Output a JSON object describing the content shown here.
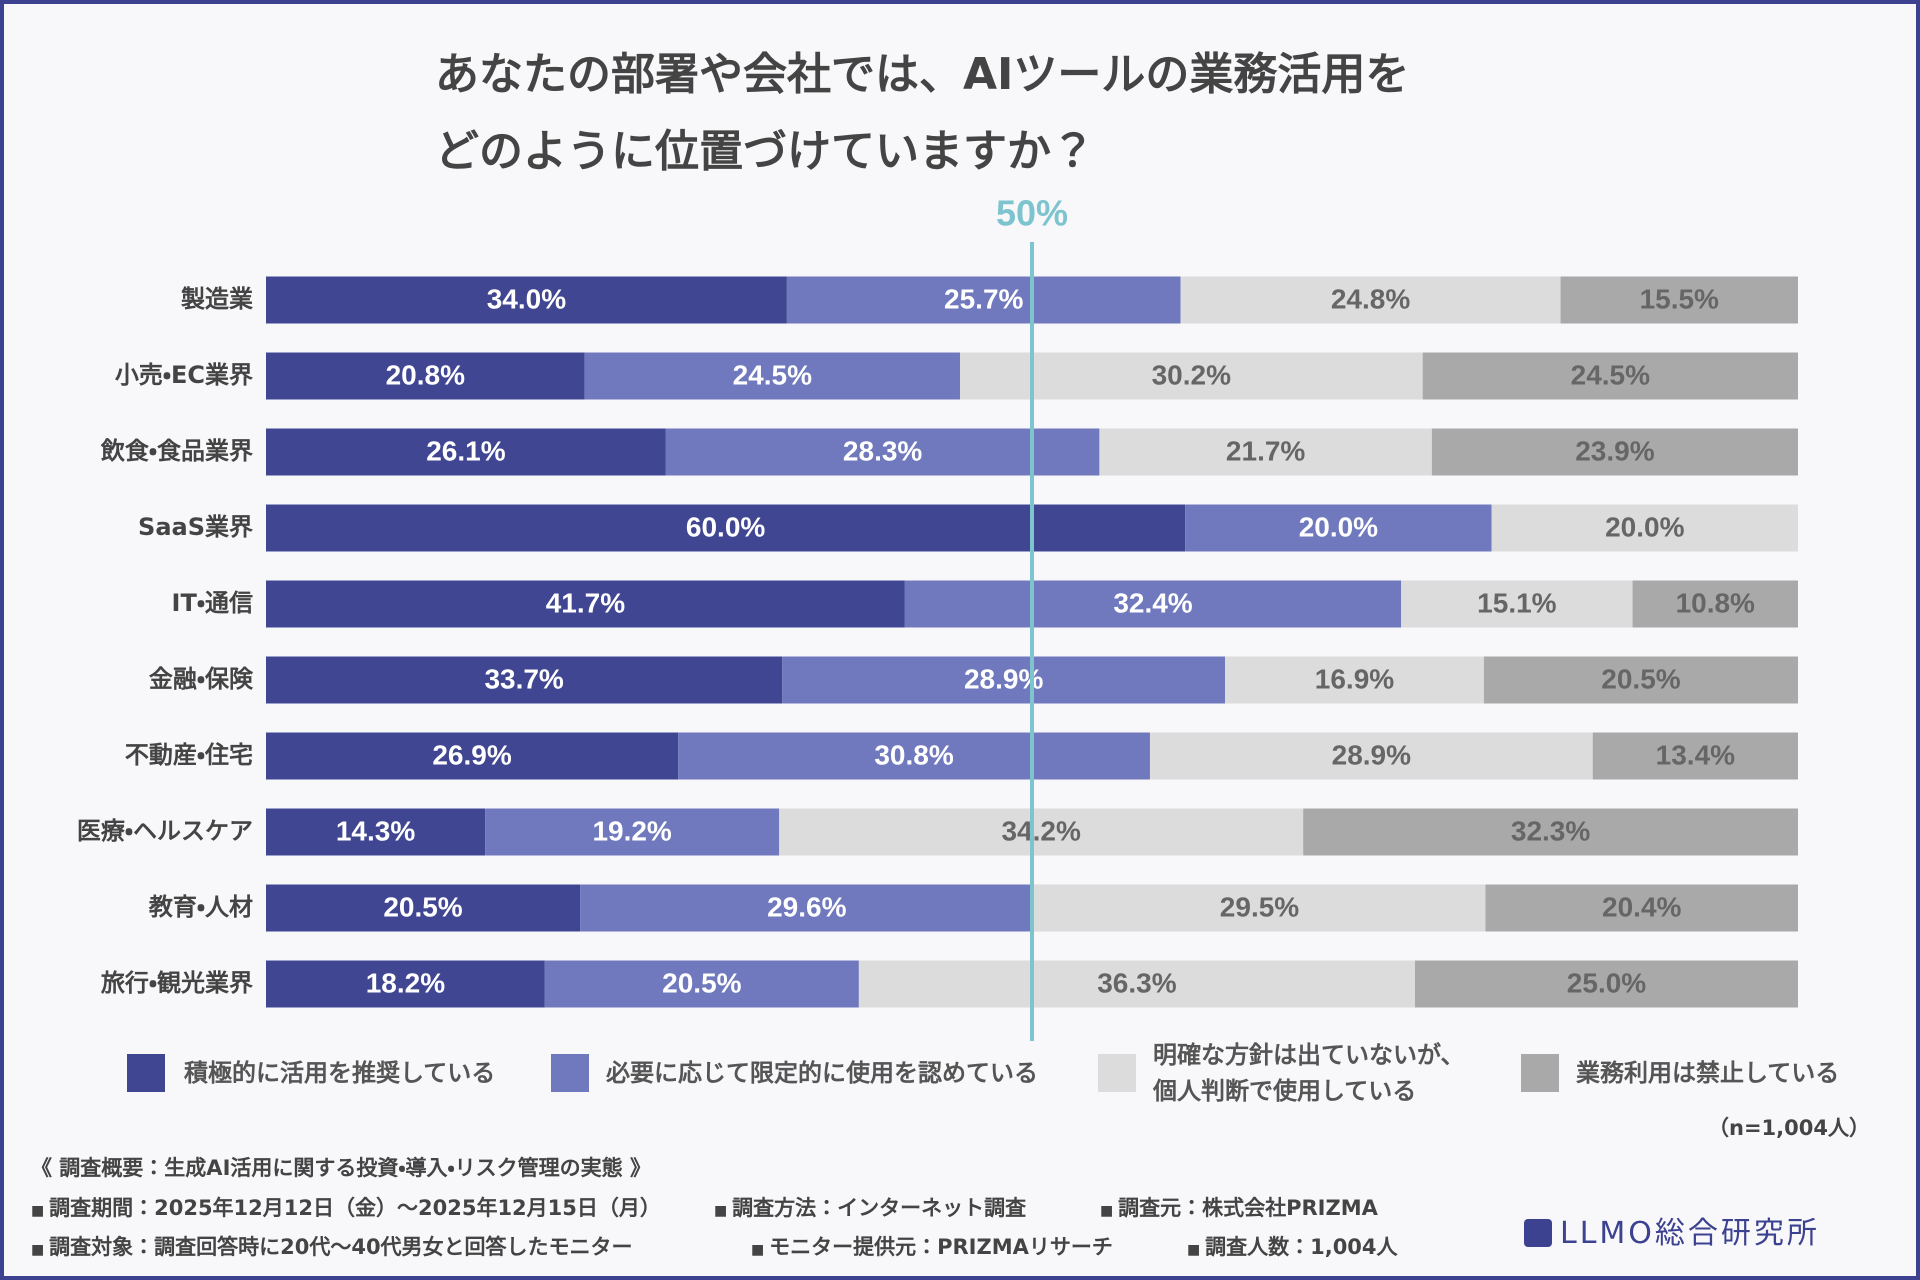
{
  "chart_data": {
    "type": "stacked_bar_horizontal",
    "title": [
      "あなたの部署や会社では、AIツールの業務活用を",
      "どのように位置づけていますか？"
    ],
    "categories": [
      "製造業",
      "小売・EC業界",
      "飲食・食品業界",
      "SaaS業界",
      "IT・通信",
      "金融・保険",
      "不動産・住宅",
      "医療・ヘルスケア",
      "教育・人材",
      "旅行・観光業界"
    ],
    "xlim": [
      0,
      100
    ],
    "reference_line": {
      "value": 50,
      "label": "50%",
      "color": "#7ec4cf"
    },
    "series": [
      {
        "name": "積極的に活用を推奨している",
        "color": "#404691",
        "label_color": "#ffffff",
        "values": [
          34.0,
          20.8,
          26.1,
          60.0,
          41.7,
          33.7,
          26.9,
          14.3,
          20.5,
          18.2
        ],
        "value_labels": [
          "34.0%",
          "20.8%",
          "26.1%",
          "60.0%",
          "41.7%",
          "33.7%",
          "26.9%",
          "14.3%",
          "20.5%",
          "18.2%"
        ]
      },
      {
        "name": "必要に応じて限定的に使用を認めている",
        "color": "#7079bd",
        "label_color": "#ffffff",
        "values": [
          25.7,
          24.5,
          28.3,
          20.0,
          32.4,
          28.9,
          30.8,
          19.2,
          29.6,
          20.5
        ],
        "value_labels": [
          "25.7%",
          "24.5%",
          "28.3%",
          "20.0%",
          "32.4%",
          "28.9%",
          "30.8%",
          "19.2%",
          "29.6%",
          "20.5%"
        ]
      },
      {
        "name": "明確な方針は出ていないが、\n個人判断で使用している",
        "color": "#dcdcdc",
        "label_color": "#666666",
        "values": [
          24.8,
          30.2,
          21.7,
          20.0,
          15.1,
          16.9,
          28.9,
          34.2,
          29.5,
          36.3
        ],
        "value_labels": [
          "24.8%",
          "30.2%",
          "21.7%",
          "20.0%",
          "15.1%",
          "16.9%",
          "28.9%",
          "34.2%",
          "29.5%",
          "36.3%"
        ]
      },
      {
        "name": "業務利用は禁止している",
        "color": "#a9a9a9",
        "label_color": "#666666",
        "values": [
          15.5,
          24.5,
          23.9,
          0,
          10.8,
          20.5,
          13.4,
          32.3,
          20.4,
          25.0
        ],
        "value_labels": [
          "15.5%",
          "24.5%",
          "23.9%",
          null,
          "10.8%",
          "20.5%",
          "13.4%",
          "32.3%",
          "20.4%",
          "25.0%"
        ]
      }
    ],
    "sample_note": "（n=1,004人）"
  },
  "footer": {
    "heading": "《 調査概要：生成AI活用に関する投資・導入・リスク管理の実態 》",
    "lines": [
      [
        "調査期間：2025年12月12日（金）～2025年12月15日（月）",
        "調査方法：インターネット調査",
        "調査元：株式会社PRIZMA"
      ],
      [
        "調査対象：調査回答時に20代～40代男女と回答したモニター",
        "モニター提供元：PRIZMAリサーチ",
        "調査人数：1,004人"
      ]
    ],
    "logo": "LLMO総合研究所"
  }
}
